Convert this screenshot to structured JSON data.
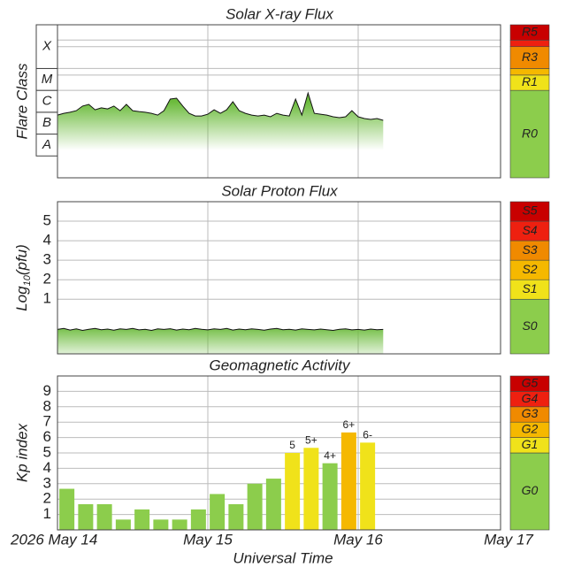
{
  "chart_data": [
    {
      "type": "line",
      "title": "Solar X-ray Flux",
      "ylabel": "Flare Class",
      "ylim": [
        -9,
        -2
      ],
      "flare_classes": [
        {
          "label": "A",
          "range": [
            -8,
            -7
          ]
        },
        {
          "label": "B",
          "range": [
            -7,
            -6
          ]
        },
        {
          "label": "C",
          "range": [
            -6,
            -5
          ]
        },
        {
          "label": "M",
          "range": [
            -5,
            -4
          ]
        },
        {
          "label": "X",
          "range": [
            -4,
            -2
          ]
        }
      ],
      "scale": [
        {
          "label": "R0",
          "color": "#8ccd4c",
          "range": [
            -9,
            -5
          ]
        },
        {
          "label": "R1",
          "color": "#f0e21a",
          "range": [
            -5,
            -4.3
          ]
        },
        {
          "label": null,
          "color": "#f5b800",
          "range": [
            -4.3,
            -4
          ]
        },
        {
          "label": "R3",
          "color": "#f08a00",
          "range": [
            -4,
            -3
          ]
        },
        {
          "label": null,
          "color": "#ee2010",
          "range": [
            -3,
            -2.7
          ]
        },
        {
          "label": "R5",
          "color": "#c80000",
          "range": [
            -2.7,
            -2
          ]
        }
      ],
      "series": [
        {
          "color": "#6cbb3c",
          "x": [
            0,
            1,
            2,
            3,
            4,
            5,
            6,
            7,
            8,
            9,
            10,
            11,
            12,
            13,
            14,
            15,
            16,
            17,
            18,
            19,
            20,
            21,
            22,
            23,
            24,
            25,
            26,
            27,
            28,
            29,
            30,
            31,
            32,
            33,
            34,
            35,
            36,
            37,
            38,
            39,
            40,
            41,
            42,
            43,
            44,
            45,
            46,
            47,
            48,
            49,
            50,
            51,
            52
          ],
          "values": [
            -6.13,
            -6.05,
            -6,
            -5.93,
            -5.72,
            -5.64,
            -5.89,
            -5.8,
            -5.85,
            -5.72,
            -5.93,
            -5.64,
            -5.93,
            -5.97,
            -6,
            -6.05,
            -6.13,
            -5.93,
            -5.4,
            -5.36,
            -5.72,
            -6.05,
            -6.17,
            -6.17,
            -6.09,
            -5.89,
            -6.05,
            -5.89,
            -5.52,
            -5.93,
            -6.05,
            -6.13,
            -6.17,
            -6.13,
            -6.21,
            -6.05,
            -6.13,
            -6.17,
            -5.4,
            -6.13,
            -5.12,
            -6.05,
            -6.09,
            -6.13,
            -6.21,
            -6.25,
            -6.21,
            -5.93,
            -6.21,
            -6.29,
            -6.33,
            -6.29,
            -6.37
          ]
        }
      ]
    },
    {
      "type": "line",
      "title": "Solar Proton Flux",
      "ylabel": {
        "base": "Log",
        "sub": "10",
        "unit": "(pfu)"
      },
      "ylim": [
        -1.8,
        6
      ],
      "yticks": [
        1,
        2,
        3,
        4,
        5
      ],
      "grid": true,
      "scale": [
        {
          "label": "S0",
          "color": "#8ccd4c",
          "range": [
            -1.8,
            1
          ]
        },
        {
          "label": "S1",
          "color": "#f0e21a",
          "range": [
            1,
            2
          ]
        },
        {
          "label": "S2",
          "color": "#f5b800",
          "range": [
            2,
            3
          ]
        },
        {
          "label": "S3",
          "color": "#f08a00",
          "range": [
            3,
            4
          ]
        },
        {
          "label": "S4",
          "color": "#ee2010",
          "range": [
            4,
            5
          ]
        },
        {
          "label": "S5",
          "color": "#c80000",
          "range": [
            5,
            6
          ]
        }
      ],
      "series": [
        {
          "color": "#6cbb3c",
          "x": [
            0,
            1,
            2,
            3,
            4,
            5,
            6,
            7,
            8,
            9,
            10,
            11,
            12,
            13,
            14,
            15,
            16,
            17,
            18,
            19,
            20,
            21,
            22,
            23,
            24,
            25,
            26,
            27,
            28,
            29,
            30,
            31,
            32,
            33,
            34,
            35,
            36,
            37,
            38,
            39,
            40,
            41,
            42,
            43,
            44,
            45,
            46,
            47,
            48,
            49,
            50,
            51,
            52
          ],
          "values": [
            -0.55,
            -0.5,
            -0.58,
            -0.52,
            -0.6,
            -0.54,
            -0.5,
            -0.56,
            -0.53,
            -0.59,
            -0.52,
            -0.55,
            -0.5,
            -0.57,
            -0.54,
            -0.6,
            -0.52,
            -0.55,
            -0.51,
            -0.58,
            -0.53,
            -0.56,
            -0.5,
            -0.54,
            -0.57,
            -0.52,
            -0.55,
            -0.5,
            -0.58,
            -0.53,
            -0.56,
            -0.52,
            -0.55,
            -0.59,
            -0.53,
            -0.5,
            -0.56,
            -0.54,
            -0.58,
            -0.52,
            -0.55,
            -0.57,
            -0.53,
            -0.56,
            -0.6,
            -0.54,
            -0.52,
            -0.57,
            -0.55,
            -0.58,
            -0.53,
            -0.56,
            -0.55
          ]
        }
      ]
    },
    {
      "type": "bar",
      "title": "Geomagnetic Activity",
      "ylabel": "Kp index",
      "xlabel": "Universal Time",
      "ylim": [
        0,
        10
      ],
      "yticks": [
        1,
        2,
        3,
        4,
        5,
        6,
        7,
        8,
        9
      ],
      "grid": true,
      "xlim": [
        0,
        72
      ],
      "xticks": [
        {
          "value": 0,
          "label": "2026 May 14"
        },
        {
          "value": 24,
          "label": "May 15"
        },
        {
          "value": 48,
          "label": "May 16"
        },
        {
          "value": 72,
          "label": "May 17"
        }
      ],
      "scale": [
        {
          "label": "G0",
          "color": "#8ccd4c",
          "range": [
            0,
            5
          ]
        },
        {
          "label": "G1",
          "color": "#f0e21a",
          "range": [
            5,
            6
          ]
        },
        {
          "label": "G2",
          "color": "#f5b800",
          "range": [
            6,
            7
          ]
        },
        {
          "label": "G3",
          "color": "#f08a00",
          "range": [
            7,
            8
          ]
        },
        {
          "label": "G4",
          "color": "#ee2010",
          "range": [
            8,
            9
          ]
        },
        {
          "label": "G5",
          "color": "#c80000",
          "range": [
            9,
            10
          ]
        }
      ],
      "series": [
        {
          "x": [
            1.5,
            4.5,
            7.5,
            10.5,
            13.5,
            16.5,
            19.5,
            22.5,
            25.5,
            28.5,
            31.5,
            34.5,
            37.5,
            40.5,
            43.5,
            46.5,
            49.5
          ],
          "values": [
            2.67,
            1.67,
            1.67,
            0.67,
            1.33,
            0.67,
            0.67,
            1.33,
            2.33,
            1.67,
            3,
            3.33,
            5,
            5.33,
            4.33,
            6.33,
            5.67
          ],
          "value_labels": [
            null,
            null,
            null,
            null,
            null,
            null,
            null,
            null,
            null,
            null,
            null,
            null,
            "5",
            "5+",
            "4+",
            "6+",
            "6-"
          ],
          "colors": [
            "#8ccd4c",
            "#8ccd4c",
            "#8ccd4c",
            "#8ccd4c",
            "#8ccd4c",
            "#8ccd4c",
            "#8ccd4c",
            "#8ccd4c",
            "#8ccd4c",
            "#8ccd4c",
            "#8ccd4c",
            "#8ccd4c",
            "#f0e21a",
            "#f0e21a",
            "#8ccd4c",
            "#f5b800",
            "#f0e21a"
          ]
        }
      ]
    }
  ]
}
